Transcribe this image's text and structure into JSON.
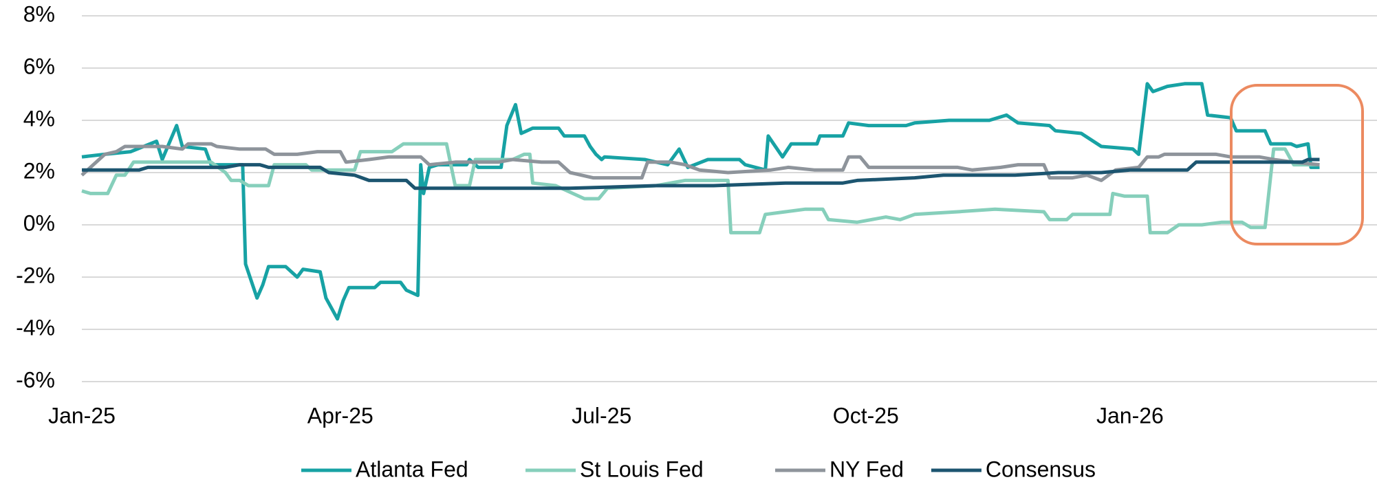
{
  "chart_data": {
    "type": "line",
    "xlim": [
      0,
      451
    ],
    "ylim": [
      -6,
      8
    ],
    "grid": true,
    "legend": "bottom",
    "xticks": [
      {
        "value": 0,
        "label": "Jan-25"
      },
      {
        "value": 90,
        "label": "Apr-25"
      },
      {
        "value": 181,
        "label": "Jul-25"
      },
      {
        "value": 273,
        "label": "Oct-25"
      },
      {
        "value": 365,
        "label": "Jan-26"
      }
    ],
    "yticks": [
      {
        "value": -6,
        "label": "-6%"
      },
      {
        "value": -4,
        "label": "-4%"
      },
      {
        "value": -2,
        "label": "-2%"
      },
      {
        "value": 0,
        "label": "0%"
      },
      {
        "value": 2,
        "label": "2%"
      },
      {
        "value": 4,
        "label": "4%"
      },
      {
        "value": 6,
        "label": "6%"
      },
      {
        "value": 8,
        "label": "8%"
      }
    ],
    "series": [
      {
        "name": "Atlanta Fed",
        "color": "#17a2a4",
        "x": [
          0,
          8,
          17,
          26,
          28,
          33,
          35,
          43,
          45,
          56,
          57,
          61,
          63,
          65,
          71,
          75,
          77,
          83,
          85,
          89,
          91,
          93,
          102,
          104,
          111,
          113,
          117,
          118,
          119,
          121,
          124,
          134,
          135,
          138,
          146,
          148,
          151,
          153,
          157,
          166,
          168,
          175,
          177,
          179,
          181,
          182,
          196,
          204,
          208,
          211,
          218,
          229,
          231,
          238,
          239,
          244,
          247,
          256,
          257,
          265,
          267,
          274,
          287,
          290,
          302,
          316,
          322,
          326,
          337,
          339,
          348,
          355,
          366,
          368,
          371,
          373,
          378,
          384,
          390,
          392,
          400,
          402,
          412,
          414,
          421,
          423,
          427,
          428,
          431
        ],
        "values": [
          2.6,
          2.7,
          2.8,
          3.2,
          2.5,
          3.8,
          3.0,
          2.9,
          2.3,
          2.3,
          -1.5,
          -2.8,
          -2.3,
          -1.6,
          -1.6,
          -2.0,
          -1.7,
          -1.8,
          -2.8,
          -3.6,
          -2.9,
          -2.4,
          -2.4,
          -2.2,
          -2.2,
          -2.5,
          -2.7,
          2.3,
          1.2,
          2.2,
          2.3,
          2.3,
          2.5,
          2.2,
          2.2,
          3.8,
          4.6,
          3.5,
          3.7,
          3.7,
          3.4,
          3.4,
          3.0,
          2.7,
          2.5,
          2.6,
          2.5,
          2.3,
          2.9,
          2.2,
          2.5,
          2.5,
          2.3,
          2.1,
          3.4,
          2.6,
          3.1,
          3.1,
          3.4,
          3.4,
          3.9,
          3.8,
          3.8,
          3.9,
          4.0,
          4.0,
          4.2,
          3.9,
          3.8,
          3.6,
          3.5,
          3.0,
          2.9,
          2.7,
          5.4,
          5.1,
          5.3,
          5.4,
          5.4,
          4.2,
          4.1,
          3.6,
          3.6,
          3.1,
          3.1,
          3.0,
          3.1,
          2.2,
          2.2
        ]
      },
      {
        "name": "St Louis Fed",
        "color": "#86cfbb",
        "x": [
          0,
          3,
          9,
          12,
          15,
          18,
          45,
          50,
          52,
          55,
          58,
          65,
          67,
          78,
          80,
          95,
          97,
          108,
          112,
          127,
          130,
          135,
          137,
          150,
          154,
          156,
          157,
          165,
          175,
          180,
          183,
          200,
          210,
          225,
          226,
          236,
          238,
          245,
          252,
          258,
          260,
          270,
          280,
          285,
          290,
          305,
          318,
          335,
          337,
          343,
          345,
          358,
          359,
          363,
          371,
          372,
          378,
          382,
          390,
          397,
          404,
          407,
          412,
          415,
          419,
          422,
          431
        ],
        "values": [
          1.3,
          1.2,
          1.2,
          1.9,
          1.9,
          2.4,
          2.4,
          2.0,
          1.7,
          1.7,
          1.5,
          1.5,
          2.3,
          2.3,
          2.1,
          2.1,
          2.8,
          2.8,
          3.1,
          3.1,
          1.5,
          1.5,
          2.5,
          2.5,
          2.7,
          2.7,
          1.6,
          1.5,
          1.0,
          1.0,
          1.4,
          1.5,
          1.7,
          1.7,
          -0.3,
          -0.3,
          0.4,
          0.5,
          0.6,
          0.6,
          0.2,
          0.1,
          0.3,
          0.2,
          0.4,
          0.5,
          0.6,
          0.5,
          0.2,
          0.2,
          0.4,
          0.4,
          1.2,
          1.1,
          1.1,
          -0.3,
          -0.3,
          0.0,
          0.0,
          0.1,
          0.1,
          -0.1,
          -0.1,
          2.9,
          2.9,
          2.3,
          2.3
        ]
      },
      {
        "name": "NY Fed",
        "color": "#8e949b",
        "x": [
          0,
          8,
          12,
          15,
          28,
          35,
          37,
          45,
          47,
          55,
          64,
          67,
          75,
          82,
          90,
          92,
          100,
          107,
          118,
          121,
          130,
          145,
          150,
          160,
          166,
          170,
          178,
          195,
          197,
          205,
          210,
          215,
          225,
          240,
          246,
          255,
          265,
          267,
          271,
          274,
          305,
          310,
          320,
          326,
          335,
          337,
          345,
          350,
          355,
          360,
          368,
          371,
          375,
          377,
          395,
          400,
          410,
          415,
          422,
          431
        ],
        "values": [
          1.9,
          2.7,
          2.8,
          3.0,
          3.0,
          2.9,
          3.1,
          3.1,
          3.0,
          2.9,
          2.9,
          2.7,
          2.7,
          2.8,
          2.8,
          2.4,
          2.5,
          2.6,
          2.6,
          2.3,
          2.4,
          2.4,
          2.5,
          2.4,
          2.4,
          2.0,
          1.8,
          1.8,
          2.4,
          2.4,
          2.3,
          2.1,
          2.0,
          2.1,
          2.2,
          2.1,
          2.1,
          2.6,
          2.6,
          2.2,
          2.2,
          2.1,
          2.2,
          2.3,
          2.3,
          1.8,
          1.8,
          1.9,
          1.7,
          2.1,
          2.2,
          2.6,
          2.6,
          2.7,
          2.7,
          2.6,
          2.6,
          2.5,
          2.4,
          2.3
        ]
      },
      {
        "name": "Consensus",
        "color": "#1c5570",
        "x": [
          0,
          20,
          23,
          50,
          55,
          62,
          65,
          83,
          86,
          95,
          100,
          113,
          116,
          128,
          140,
          170,
          200,
          220,
          245,
          265,
          270,
          290,
          300,
          325,
          340,
          355,
          365,
          385,
          388,
          425,
          427,
          431
        ],
        "values": [
          2.1,
          2.1,
          2.2,
          2.2,
          2.3,
          2.3,
          2.2,
          2.2,
          2.0,
          1.9,
          1.7,
          1.7,
          1.4,
          1.4,
          1.4,
          1.4,
          1.5,
          1.5,
          1.6,
          1.6,
          1.7,
          1.8,
          1.9,
          1.9,
          2.0,
          2.0,
          2.1,
          2.1,
          2.4,
          2.4,
          2.5,
          2.5
        ]
      }
    ]
  }
}
